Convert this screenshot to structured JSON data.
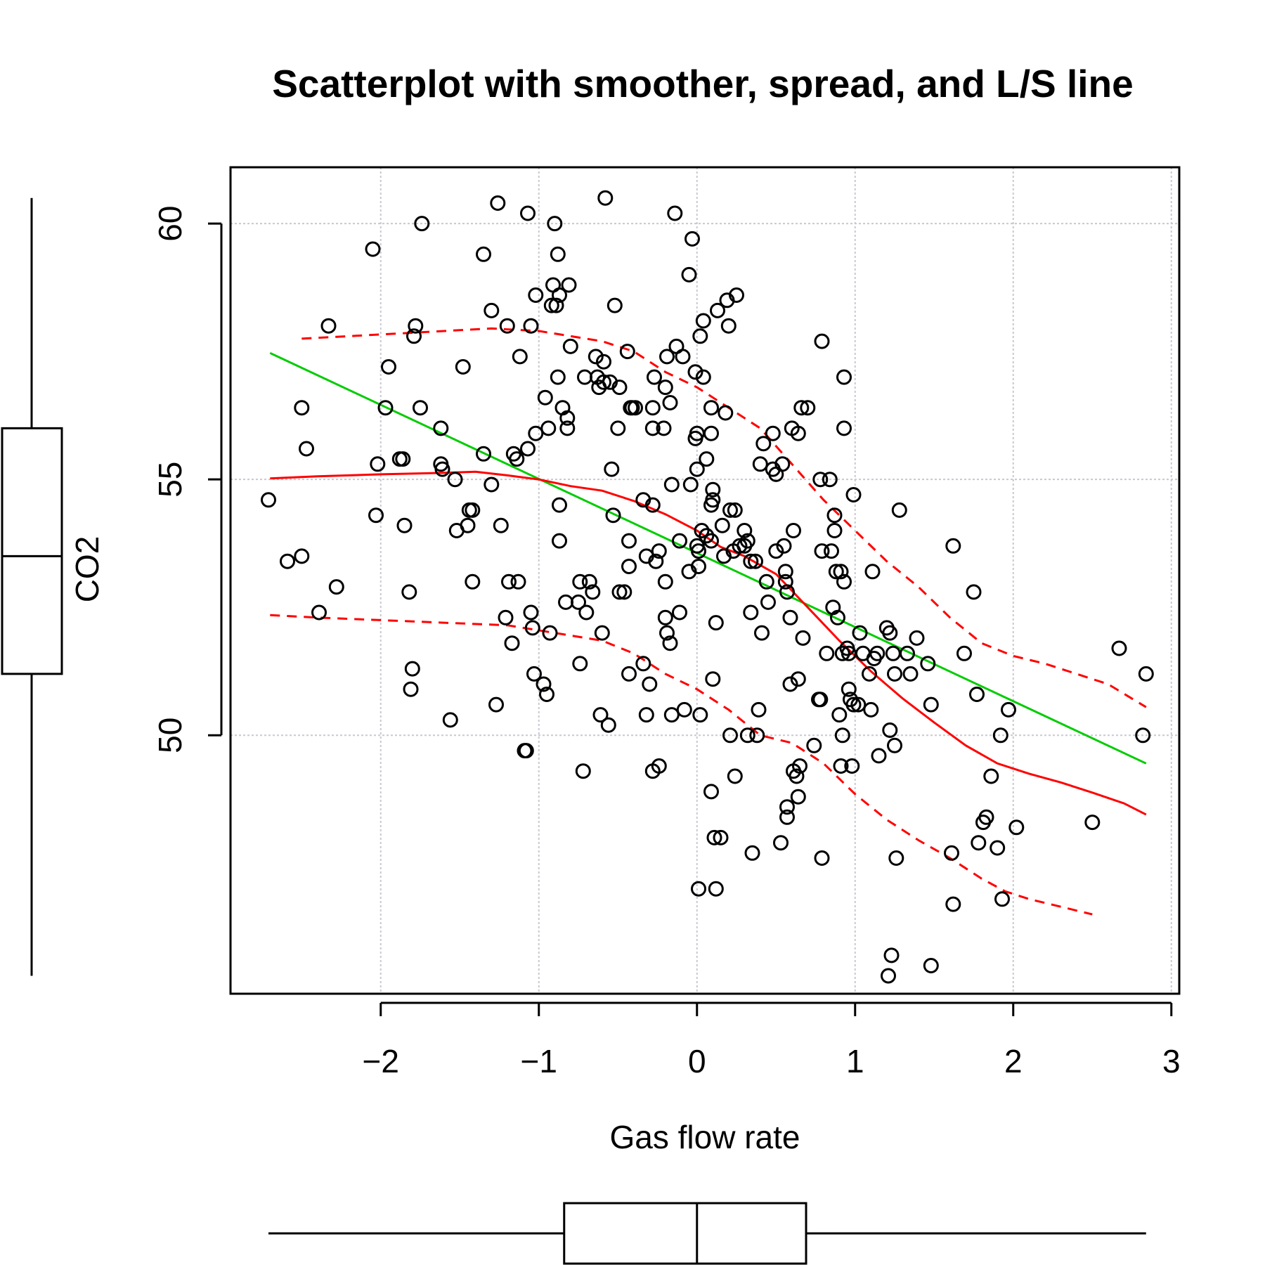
{
  "chart_data": {
    "type": "scatter",
    "title": "Scatterplot with smoother, spread, and L/S line",
    "xlabel": "Gas flow rate",
    "ylabel": "CO2",
    "xlim": [
      -2.95,
      3.05
    ],
    "ylim": [
      44.95,
      61.1
    ],
    "x_ticks": [
      -2,
      -1,
      0,
      1,
      2,
      3
    ],
    "x_tick_labels": [
      "−2",
      "−1",
      "0",
      "1",
      "2",
      "3"
    ],
    "y_ticks": [
      50,
      55,
      60
    ],
    "y_tick_labels": [
      "50",
      "55",
      "60"
    ],
    "grid": true,
    "colors": {
      "points": "#000000",
      "smoother": "#ff0000",
      "spread": "#ff0000",
      "ls_line": "#00cc00",
      "grid": "#c8c8d2"
    },
    "points": [
      [
        -2.71,
        54.6
      ],
      [
        -2.59,
        53.4
      ],
      [
        -2.5,
        53.5
      ],
      [
        -2.5,
        56.4
      ],
      [
        -2.47,
        55.6
      ],
      [
        -2.39,
        52.4
      ],
      [
        -2.33,
        58.0
      ],
      [
        -2.28,
        52.9
      ],
      [
        -2.05,
        59.5
      ],
      [
        -2.03,
        54.3
      ],
      [
        -2.02,
        55.3
      ],
      [
        -1.97,
        56.4
      ],
      [
        -1.95,
        57.2
      ],
      [
        -1.88,
        55.4
      ],
      [
        -1.86,
        55.4
      ],
      [
        -1.85,
        54.1
      ],
      [
        -1.82,
        52.8
      ],
      [
        -1.81,
        50.9
      ],
      [
        -1.8,
        51.3
      ],
      [
        -1.79,
        57.8
      ],
      [
        -1.78,
        58.0
      ],
      [
        -1.75,
        56.4
      ],
      [
        -1.74,
        60.0
      ],
      [
        -1.62,
        56.0
      ],
      [
        -1.62,
        55.3
      ],
      [
        -1.61,
        55.2
      ],
      [
        -1.56,
        50.3
      ],
      [
        -1.53,
        55.0
      ],
      [
        -1.52,
        54.0
      ],
      [
        -1.48,
        57.2
      ],
      [
        -1.45,
        54.1
      ],
      [
        -1.44,
        54.4
      ],
      [
        -1.42,
        54.4
      ],
      [
        -1.42,
        53.0
      ],
      [
        -1.35,
        55.5
      ],
      [
        -1.35,
        59.4
      ],
      [
        -1.3,
        58.3
      ],
      [
        -1.3,
        54.9
      ],
      [
        -1.27,
        50.6
      ],
      [
        -1.26,
        60.4
      ],
      [
        -1.24,
        54.1
      ],
      [
        -1.21,
        52.3
      ],
      [
        -1.2,
        58.0
      ],
      [
        -1.19,
        53.0
      ],
      [
        -1.17,
        51.8
      ],
      [
        -1.16,
        55.5
      ],
      [
        -1.14,
        55.4
      ],
      [
        -1.13,
        53.0
      ],
      [
        -1.12,
        57.4
      ],
      [
        -1.09,
        49.7
      ],
      [
        -1.08,
        49.7
      ],
      [
        -1.07,
        55.6
      ],
      [
        -1.07,
        60.2
      ],
      [
        -1.05,
        58.0
      ],
      [
        -1.05,
        52.4
      ],
      [
        -1.04,
        52.1
      ],
      [
        -1.03,
        51.2
      ],
      [
        -1.02,
        55.9
      ],
      [
        -1.02,
        58.6
      ],
      [
        -0.97,
        51.0
      ],
      [
        -0.96,
        56.6
      ],
      [
        -0.95,
        50.8
      ],
      [
        -0.94,
        56.0
      ],
      [
        -0.93,
        52.0
      ],
      [
        -0.92,
        58.4
      ],
      [
        -0.91,
        58.8
      ],
      [
        -0.9,
        60.0
      ],
      [
        -0.89,
        58.4
      ],
      [
        -0.88,
        59.4
      ],
      [
        -0.88,
        57.0
      ],
      [
        -0.87,
        58.6
      ],
      [
        -0.87,
        54.5
      ],
      [
        -0.87,
        53.8
      ],
      [
        -0.85,
        56.4
      ],
      [
        -0.83,
        52.6
      ],
      [
        -0.82,
        56.2
      ],
      [
        -0.82,
        56.0
      ],
      [
        -0.81,
        58.8
      ],
      [
        -0.8,
        57.6
      ],
      [
        -0.75,
        52.6
      ],
      [
        -0.74,
        51.4
      ],
      [
        -0.74,
        53.0
      ],
      [
        -0.72,
        49.3
      ],
      [
        -0.71,
        57.0
      ],
      [
        -0.7,
        52.4
      ],
      [
        -0.68,
        53.0
      ],
      [
        -0.66,
        52.8
      ],
      [
        -0.64,
        57.4
      ],
      [
        -0.63,
        57.0
      ],
      [
        -0.62,
        56.8
      ],
      [
        -0.61,
        50.4
      ],
      [
        -0.6,
        52.0
      ],
      [
        -0.59,
        57.3
      ],
      [
        -0.59,
        56.9
      ],
      [
        -0.58,
        60.5
      ],
      [
        -0.56,
        50.2
      ],
      [
        -0.55,
        56.9
      ],
      [
        -0.54,
        55.2
      ],
      [
        -0.53,
        54.3
      ],
      [
        -0.52,
        58.4
      ],
      [
        -0.5,
        56.0
      ],
      [
        -0.49,
        52.8
      ],
      [
        -0.49,
        56.8
      ],
      [
        -0.46,
        52.8
      ],
      [
        -0.44,
        57.5
      ],
      [
        -0.43,
        51.2
      ],
      [
        -0.43,
        53.3
      ],
      [
        -0.43,
        53.8
      ],
      [
        -0.42,
        56.4
      ],
      [
        -0.41,
        56.4
      ],
      [
        -0.39,
        56.4
      ],
      [
        -0.34,
        54.6
      ],
      [
        -0.34,
        51.4
      ],
      [
        -0.32,
        53.5
      ],
      [
        -0.32,
        50.4
      ],
      [
        -0.3,
        51.0
      ],
      [
        -0.28,
        56.4
      ],
      [
        -0.28,
        56.0
      ],
      [
        -0.28,
        54.5
      ],
      [
        -0.28,
        49.3
      ],
      [
        -0.27,
        57.0
      ],
      [
        -0.26,
        53.4
      ],
      [
        -0.24,
        53.6
      ],
      [
        -0.24,
        49.4
      ],
      [
        -0.21,
        56.0
      ],
      [
        -0.2,
        56.8
      ],
      [
        -0.2,
        52.3
      ],
      [
        -0.2,
        53.0
      ],
      [
        -0.19,
        57.4
      ],
      [
        -0.19,
        52.0
      ],
      [
        -0.17,
        56.5
      ],
      [
        -0.17,
        51.8
      ],
      [
        -0.16,
        54.9
      ],
      [
        -0.16,
        50.4
      ],
      [
        -0.14,
        60.2
      ],
      [
        -0.13,
        57.6
      ],
      [
        -0.11,
        53.8
      ],
      [
        -0.11,
        52.4
      ],
      [
        -0.09,
        57.4
      ],
      [
        -0.08,
        50.5
      ],
      [
        -0.05,
        59.0
      ],
      [
        -0.05,
        53.2
      ],
      [
        -0.04,
        54.9
      ],
      [
        -0.03,
        59.7
      ],
      [
        -0.01,
        57.1
      ],
      [
        -0.01,
        55.8
      ],
      [
        0.0,
        55.9
      ],
      [
        0.0,
        55.2
      ],
      [
        0.0,
        53.7
      ],
      [
        0.01,
        53.6
      ],
      [
        0.01,
        53.3
      ],
      [
        0.01,
        47.0
      ],
      [
        0.02,
        57.8
      ],
      [
        0.02,
        50.4
      ],
      [
        0.03,
        54.0
      ],
      [
        0.04,
        57.0
      ],
      [
        0.04,
        58.1
      ],
      [
        0.06,
        53.9
      ],
      [
        0.06,
        55.4
      ],
      [
        0.09,
        55.9
      ],
      [
        0.09,
        56.4
      ],
      [
        0.09,
        54.5
      ],
      [
        0.09,
        53.8
      ],
      [
        0.09,
        48.9
      ],
      [
        0.1,
        51.1
      ],
      [
        0.1,
        54.8
      ],
      [
        0.1,
        54.6
      ],
      [
        0.11,
        48.0
      ],
      [
        0.12,
        47.0
      ],
      [
        0.12,
        52.2
      ],
      [
        0.13,
        58.3
      ],
      [
        0.15,
        48.0
      ],
      [
        0.16,
        54.1
      ],
      [
        0.17,
        53.5
      ],
      [
        0.18,
        56.3
      ],
      [
        0.19,
        58.5
      ],
      [
        0.2,
        58.0
      ],
      [
        0.21,
        54.4
      ],
      [
        0.21,
        50.0
      ],
      [
        0.23,
        53.6
      ],
      [
        0.24,
        54.4
      ],
      [
        0.24,
        49.2
      ],
      [
        0.25,
        58.6
      ],
      [
        0.27,
        53.7
      ],
      [
        0.3,
        53.7
      ],
      [
        0.3,
        54.0
      ],
      [
        0.32,
        53.8
      ],
      [
        0.32,
        50.0
      ],
      [
        0.34,
        52.4
      ],
      [
        0.34,
        53.4
      ],
      [
        0.35,
        47.7
      ],
      [
        0.37,
        53.4
      ],
      [
        0.38,
        50.0
      ],
      [
        0.39,
        50.5
      ],
      [
        0.4,
        55.3
      ],
      [
        0.41,
        52.0
      ],
      [
        0.42,
        55.7
      ],
      [
        0.44,
        53.0
      ],
      [
        0.45,
        52.6
      ],
      [
        0.48,
        55.9
      ],
      [
        0.48,
        55.2
      ],
      [
        0.5,
        53.6
      ],
      [
        0.5,
        55.1
      ],
      [
        0.53,
        47.9
      ],
      [
        0.54,
        55.3
      ],
      [
        0.55,
        53.7
      ],
      [
        0.56,
        53.2
      ],
      [
        0.56,
        53.0
      ],
      [
        0.57,
        48.6
      ],
      [
        0.57,
        48.4
      ],
      [
        0.57,
        52.8
      ],
      [
        0.59,
        52.3
      ],
      [
        0.59,
        51.0
      ],
      [
        0.6,
        56.0
      ],
      [
        0.61,
        54.0
      ],
      [
        0.61,
        49.3
      ],
      [
        0.63,
        49.2
      ],
      [
        0.64,
        48.8
      ],
      [
        0.64,
        55.9
      ],
      [
        0.64,
        51.1
      ],
      [
        0.65,
        49.4
      ],
      [
        0.66,
        56.4
      ],
      [
        0.67,
        51.9
      ],
      [
        0.7,
        56.4
      ],
      [
        0.74,
        49.8
      ],
      [
        0.77,
        50.7
      ],
      [
        0.78,
        50.7
      ],
      [
        0.78,
        55.0
      ],
      [
        0.79,
        53.6
      ],
      [
        0.79,
        57.7
      ],
      [
        0.79,
        47.6
      ],
      [
        0.82,
        51.6
      ],
      [
        0.84,
        55.0
      ],
      [
        0.85,
        53.6
      ],
      [
        0.86,
        52.5
      ],
      [
        0.87,
        54.3
      ],
      [
        0.87,
        54.0
      ],
      [
        0.88,
        53.2
      ],
      [
        0.89,
        52.3
      ],
      [
        0.9,
        50.4
      ],
      [
        0.91,
        49.4
      ],
      [
        0.91,
        53.2
      ],
      [
        0.92,
        51.6
      ],
      [
        0.92,
        50.0
      ],
      [
        0.93,
        53.0
      ],
      [
        0.93,
        57.0
      ],
      [
        0.93,
        56.0
      ],
      [
        0.95,
        51.7
      ],
      [
        0.96,
        50.9
      ],
      [
        0.96,
        51.6
      ],
      [
        0.97,
        50.7
      ],
      [
        0.98,
        49.4
      ],
      [
        0.99,
        54.7
      ],
      [
        0.99,
        50.6
      ],
      [
        1.02,
        50.6
      ],
      [
        1.03,
        52.0
      ],
      [
        1.05,
        51.6
      ],
      [
        1.09,
        51.2
      ],
      [
        1.1,
        50.5
      ],
      [
        1.11,
        53.2
      ],
      [
        1.12,
        51.5
      ],
      [
        1.14,
        51.6
      ],
      [
        1.15,
        49.6
      ],
      [
        1.2,
        52.1
      ],
      [
        1.21,
        45.3
      ],
      [
        1.22,
        52.0
      ],
      [
        1.22,
        50.1
      ],
      [
        1.23,
        45.7
      ],
      [
        1.24,
        51.6
      ],
      [
        1.25,
        51.2
      ],
      [
        1.25,
        49.8
      ],
      [
        1.26,
        47.6
      ],
      [
        1.28,
        54.4
      ],
      [
        1.33,
        51.6
      ],
      [
        1.35,
        51.2
      ],
      [
        1.39,
        51.9
      ],
      [
        1.46,
        51.4
      ],
      [
        1.48,
        45.5
      ],
      [
        1.48,
        50.6
      ],
      [
        1.61,
        47.7
      ],
      [
        1.62,
        53.7
      ],
      [
        1.62,
        46.7
      ],
      [
        1.69,
        51.6
      ],
      [
        1.75,
        52.8
      ],
      [
        1.77,
        50.8
      ],
      [
        1.78,
        47.9
      ],
      [
        1.81,
        48.3
      ],
      [
        1.83,
        48.4
      ],
      [
        1.86,
        49.2
      ],
      [
        1.9,
        47.8
      ],
      [
        1.92,
        50.0
      ],
      [
        1.93,
        46.8
      ],
      [
        1.97,
        50.5
      ],
      [
        2.02,
        48.2
      ],
      [
        2.5,
        48.3
      ],
      [
        2.67,
        51.7
      ],
      [
        2.82,
        50.0
      ],
      [
        2.84,
        51.2
      ]
    ],
    "smoother": [
      [
        -2.7,
        55.02
      ],
      [
        -2.4,
        55.06
      ],
      [
        -2.0,
        55.1
      ],
      [
        -1.7,
        55.12
      ],
      [
        -1.4,
        55.15
      ],
      [
        -1.2,
        55.08
      ],
      [
        -1.0,
        55.0
      ],
      [
        -0.8,
        54.87
      ],
      [
        -0.6,
        54.78
      ],
      [
        -0.4,
        54.58
      ],
      [
        -0.2,
        54.32
      ],
      [
        0.0,
        54.0
      ],
      [
        0.15,
        53.68
      ],
      [
        0.3,
        53.5
      ],
      [
        0.5,
        53.15
      ],
      [
        0.7,
        52.5
      ],
      [
        0.9,
        51.85
      ],
      [
        1.1,
        51.25
      ],
      [
        1.3,
        50.72
      ],
      [
        1.5,
        50.25
      ],
      [
        1.7,
        49.8
      ],
      [
        1.9,
        49.45
      ],
      [
        2.1,
        49.25
      ],
      [
        2.3,
        49.08
      ],
      [
        2.5,
        48.88
      ],
      [
        2.7,
        48.67
      ],
      [
        2.84,
        48.45
      ]
    ],
    "spread_upper": [
      [
        -2.5,
        57.75
      ],
      [
        -2.2,
        57.8
      ],
      [
        -1.9,
        57.85
      ],
      [
        -1.6,
        57.9
      ],
      [
        -1.3,
        57.95
      ],
      [
        -1.0,
        57.9
      ],
      [
        -0.8,
        57.8
      ],
      [
        -0.6,
        57.7
      ],
      [
        -0.4,
        57.5
      ],
      [
        -0.2,
        57.1
      ],
      [
        0.0,
        56.8
      ],
      [
        0.2,
        56.4
      ],
      [
        0.4,
        56.0
      ],
      [
        0.6,
        55.3
      ],
      [
        0.8,
        54.6
      ],
      [
        1.0,
        54.0
      ],
      [
        1.2,
        53.4
      ],
      [
        1.4,
        52.9
      ],
      [
        1.6,
        52.3
      ],
      [
        1.8,
        51.8
      ],
      [
        2.0,
        51.55
      ],
      [
        2.2,
        51.4
      ],
      [
        2.4,
        51.2
      ],
      [
        2.6,
        51.0
      ],
      [
        2.84,
        50.55
      ]
    ],
    "spread_lower": [
      [
        -2.7,
        52.35
      ],
      [
        -2.4,
        52.3
      ],
      [
        -2.0,
        52.25
      ],
      [
        -1.6,
        52.2
      ],
      [
        -1.2,
        52.15
      ],
      [
        -0.9,
        52.0
      ],
      [
        -0.6,
        51.85
      ],
      [
        -0.4,
        51.6
      ],
      [
        -0.2,
        51.2
      ],
      [
        0.0,
        50.9
      ],
      [
        0.2,
        50.5
      ],
      [
        0.4,
        50.0
      ],
      [
        0.6,
        49.85
      ],
      [
        0.8,
        49.45
      ],
      [
        1.0,
        48.85
      ],
      [
        1.2,
        48.35
      ],
      [
        1.4,
        47.95
      ],
      [
        1.6,
        47.6
      ],
      [
        1.8,
        47.2
      ],
      [
        1.95,
        46.95
      ],
      [
        2.1,
        46.8
      ],
      [
        2.3,
        46.65
      ],
      [
        2.5,
        46.5
      ]
    ],
    "ls_line": [
      [
        -2.7,
        57.47
      ],
      [
        2.84,
        49.45
      ]
    ]
  },
  "boxplots": {
    "y_box": {
      "variable": "CO2",
      "min": 45.3,
      "q1": 51.2,
      "median": 53.5,
      "q3": 56.0,
      "max": 60.5
    },
    "x_box": {
      "variable": "Gas flow rate",
      "min": -2.71,
      "q1": -0.84,
      "median": 0.0,
      "q3": 0.69,
      "max": 2.84
    }
  }
}
